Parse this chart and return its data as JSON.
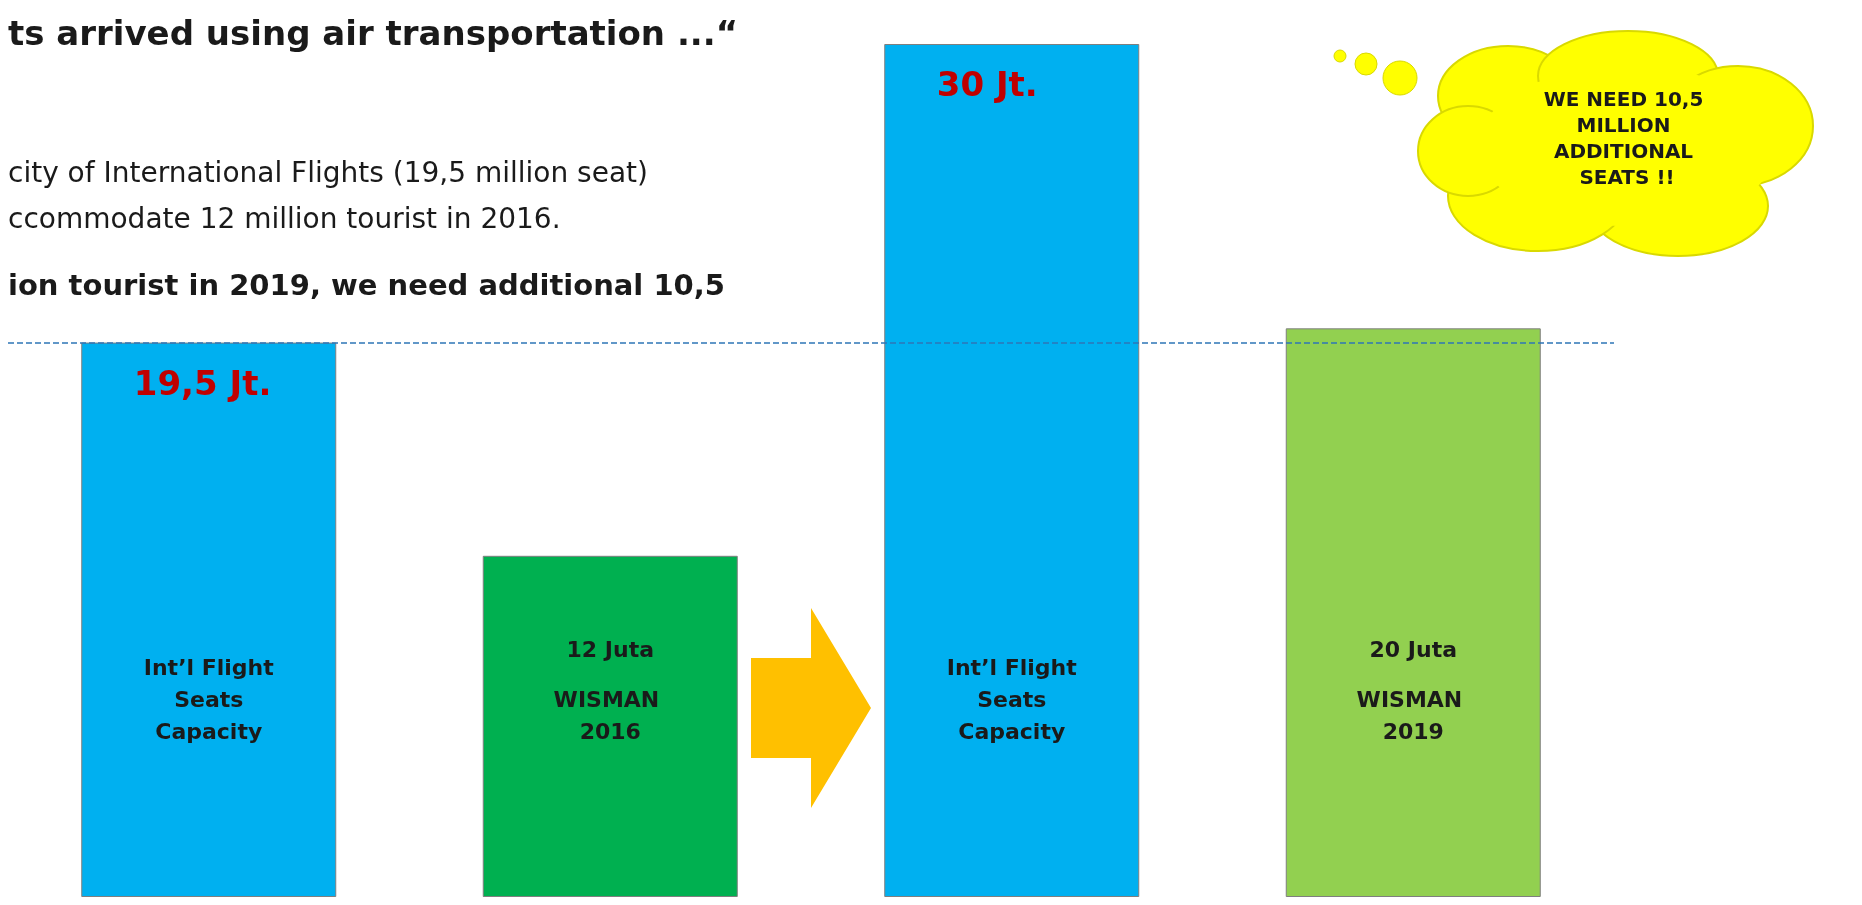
{
  "chart_data": {
    "type": "bar",
    "title": "ts arrived using air transportation ...“",
    "annotations": [
      "city of International Flights (19,5 million seat)",
      "ccommodate 12 million tourist in 2016.",
      "ion tourist in 2019, we need additional 10,5",
      "WE NEED 10,5 MILLION ADDITIONAL SEATS !!"
    ],
    "categories": [
      "Int’l Flight Seats Capacity",
      "WISMAN 2016",
      "Int’l Flight Seats Capacity",
      "WISMAN 2019"
    ],
    "series": [
      {
        "colors": [
          "#00b0f0",
          "#00b050",
          "#00b0f0",
          "#92d050"
        ],
        "values": [
          19.5,
          12,
          30,
          20
        ],
        "value_labels": [
          "19,5 Jt.",
          "12 Juta",
          "30 Jt.",
          "20 Juta"
        ]
      }
    ],
    "ref_lines": [
      {
        "axis": "y",
        "value": 19.5,
        "line_style": "dashed",
        "color": "#2e75b6"
      }
    ]
  }
}
